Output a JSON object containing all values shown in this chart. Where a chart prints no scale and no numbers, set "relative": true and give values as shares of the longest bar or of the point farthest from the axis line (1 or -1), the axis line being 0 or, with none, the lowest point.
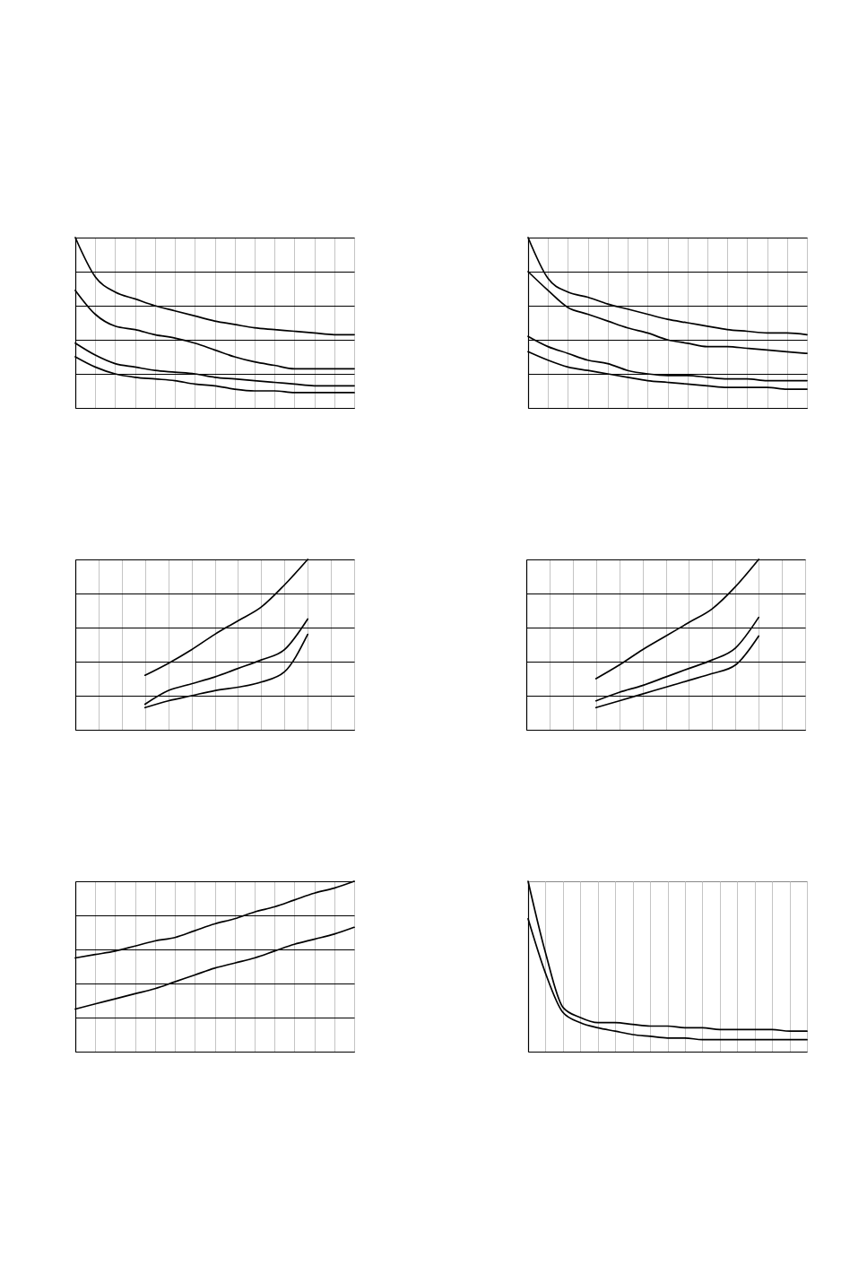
{
  "chart_data": [
    {
      "type": "line",
      "relative": true,
      "grid": true,
      "line_style": "solid",
      "categories": [
        null,
        null,
        null,
        null,
        null,
        null,
        null,
        null,
        null,
        null,
        null,
        null,
        null,
        null,
        null
      ],
      "series": [
        {
          "color": "#000000",
          "values": [
            1.0,
            0.77,
            0.68,
            0.64,
            0.6,
            0.57,
            0.54,
            0.51,
            0.49,
            0.47,
            0.46,
            0.45,
            0.44,
            0.43,
            0.43
          ]
        },
        {
          "color": "#000000",
          "values": [
            0.69,
            0.55,
            0.48,
            0.46,
            0.43,
            0.41,
            0.38,
            0.34,
            0.3,
            0.27,
            0.25,
            0.23,
            0.23,
            0.23,
            0.23
          ]
        },
        {
          "color": "#000000",
          "values": [
            0.38,
            0.31,
            0.26,
            0.24,
            0.22,
            0.21,
            0.2,
            0.18,
            0.17,
            0.16,
            0.15,
            0.14,
            0.13,
            0.13,
            0.13
          ]
        },
        {
          "color": "#000000",
          "values": [
            0.3,
            0.24,
            0.2,
            0.18,
            0.17,
            0.16,
            0.14,
            0.13,
            0.11,
            0.1,
            0.1,
            0.09,
            0.09,
            0.09,
            0.09
          ]
        }
      ]
    },
    {
      "type": "line",
      "relative": true,
      "grid": true,
      "line_style": "solid",
      "categories": [
        null,
        null,
        null,
        null,
        null,
        null,
        null,
        null,
        null,
        null,
        null,
        null,
        null,
        null,
        null
      ],
      "series": [
        {
          "color": "#000000",
          "values": [
            1.0,
            0.76,
            0.68,
            0.65,
            0.61,
            0.58,
            0.55,
            0.52,
            0.5,
            0.48,
            0.46,
            0.45,
            0.44,
            0.44,
            0.43
          ]
        },
        {
          "color": "#000000",
          "values": [
            0.8,
            0.69,
            0.59,
            0.55,
            0.51,
            0.47,
            0.44,
            0.4,
            0.38,
            0.36,
            0.36,
            0.35,
            0.34,
            0.33,
            0.32
          ]
        },
        {
          "color": "#000000",
          "values": [
            0.42,
            0.36,
            0.32,
            0.28,
            0.26,
            0.22,
            0.2,
            0.19,
            0.19,
            0.18,
            0.17,
            0.17,
            0.16,
            0.16,
            0.16
          ]
        },
        {
          "color": "#000000",
          "values": [
            0.33,
            0.28,
            0.24,
            0.22,
            0.2,
            0.18,
            0.16,
            0.15,
            0.14,
            0.13,
            0.12,
            0.12,
            0.12,
            0.11,
            0.11
          ]
        }
      ]
    },
    {
      "type": "line",
      "relative": true,
      "grid": true,
      "line_style": "solid",
      "categories": [
        null,
        null,
        null,
        null,
        null,
        null,
        null,
        null,
        null,
        null,
        null,
        null,
        null
      ],
      "series": [
        {
          "color": "#000000",
          "values": [
            null,
            null,
            null,
            0.32,
            0.39,
            0.47,
            0.56,
            0.64,
            0.72,
            0.85,
            1.0,
            null,
            null
          ]
        },
        {
          "color": "#000000",
          "values": [
            null,
            null,
            null,
            0.15,
            0.23,
            0.27,
            0.31,
            0.36,
            0.41,
            0.47,
            0.65,
            null,
            null
          ]
        },
        {
          "color": "#000000",
          "values": [
            null,
            null,
            null,
            0.13,
            0.17,
            0.2,
            0.23,
            0.25,
            0.28,
            0.34,
            0.56,
            null,
            null
          ]
        }
      ]
    },
    {
      "type": "line",
      "relative": true,
      "grid": true,
      "line_style": "solid",
      "categories": [
        null,
        null,
        null,
        null,
        null,
        null,
        null,
        null,
        null,
        null,
        null,
        null,
        null
      ],
      "series": [
        {
          "color": "#000000",
          "values": [
            null,
            null,
            null,
            0.3,
            0.38,
            0.47,
            0.55,
            0.63,
            0.71,
            0.84,
            1.0,
            null,
            null
          ]
        },
        {
          "color": "#000000",
          "values": [
            null,
            null,
            null,
            0.17,
            0.22,
            0.26,
            0.31,
            0.36,
            0.41,
            0.48,
            0.66,
            null,
            null
          ]
        },
        {
          "color": "#000000",
          "values": [
            null,
            null,
            null,
            0.13,
            0.17,
            0.21,
            0.25,
            0.29,
            0.33,
            0.38,
            0.55,
            null,
            null
          ]
        }
      ]
    },
    {
      "type": "line",
      "relative": true,
      "grid": true,
      "line_style": "solid",
      "categories": [
        null,
        null,
        null,
        null,
        null,
        null,
        null,
        null,
        null,
        null,
        null,
        null,
        null,
        null,
        null
      ],
      "series": [
        {
          "color": "#000000",
          "values": [
            0.55,
            0.57,
            0.59,
            0.62,
            0.65,
            0.67,
            0.71,
            0.75,
            0.78,
            0.82,
            0.85,
            0.89,
            0.93,
            0.96,
            1.0
          ]
        },
        {
          "color": "#000000",
          "values": [
            0.25,
            0.28,
            0.31,
            0.34,
            0.37,
            0.41,
            0.45,
            0.49,
            0.52,
            0.55,
            0.59,
            0.63,
            0.66,
            0.69,
            0.73
          ]
        }
      ]
    },
    {
      "type": "line",
      "relative": true,
      "grid": "x",
      "line_style": "solid",
      "categories": [
        null,
        null,
        null,
        null,
        null,
        null,
        null,
        null,
        null,
        null,
        null,
        null,
        null,
        null,
        null,
        null,
        null
      ],
      "series": [
        {
          "color": "#000000",
          "values": [
            1.0,
            0.58,
            0.26,
            0.2,
            0.17,
            0.17,
            0.16,
            0.15,
            0.15,
            0.14,
            0.14,
            0.13,
            0.13,
            0.13,
            0.13,
            0.12,
            0.12
          ]
        },
        {
          "color": "#000000",
          "values": [
            0.78,
            0.46,
            0.23,
            0.17,
            0.14,
            0.12,
            0.1,
            0.09,
            0.08,
            0.08,
            0.07,
            0.07,
            0.07,
            0.07,
            0.07,
            0.07,
            0.07
          ]
        }
      ]
    }
  ]
}
